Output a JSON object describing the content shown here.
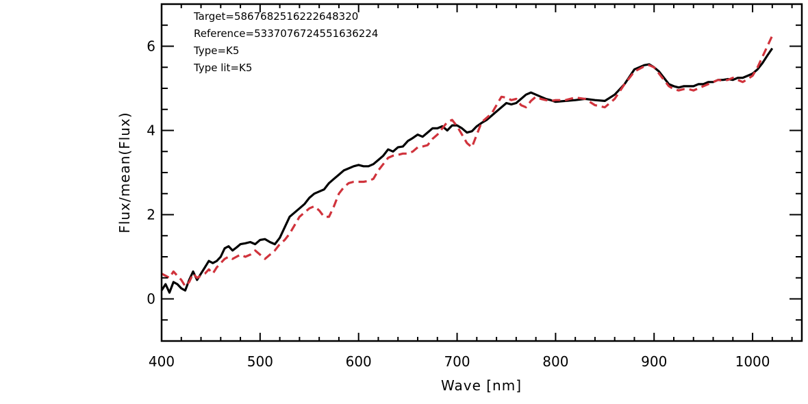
{
  "chart_data": {
    "type": "line",
    "xlabel": "Wave [nm]",
    "ylabel": "Flux/mean(Flux)",
    "xlim": [
      400,
      1050
    ],
    "ylim": [
      -1,
      7
    ],
    "x_ticks": [
      400,
      500,
      600,
      700,
      800,
      900,
      1000
    ],
    "y_ticks": [
      0,
      2,
      4,
      6
    ],
    "x_minor_step": 20,
    "y_minor_step": 0.5,
    "grid": false,
    "annotations": [
      "Target=5867682516222648320",
      "Reference=5337076724551636224",
      "Type=K5",
      "Type lit=K5"
    ],
    "series": [
      {
        "color": "#000000",
        "style": "solid",
        "x": [
          400,
          404,
          408,
          412,
          416,
          420,
          424,
          428,
          432,
          436,
          440,
          444,
          448,
          452,
          456,
          460,
          464,
          468,
          472,
          476,
          480,
          485,
          490,
          495,
          500,
          505,
          510,
          515,
          520,
          525,
          530,
          535,
          540,
          545,
          550,
          555,
          560,
          565,
          570,
          575,
          580,
          585,
          590,
          595,
          600,
          605,
          610,
          615,
          620,
          625,
          630,
          635,
          640,
          645,
          650,
          655,
          660,
          665,
          670,
          675,
          680,
          685,
          690,
          695,
          700,
          705,
          710,
          715,
          720,
          725,
          730,
          735,
          740,
          745,
          750,
          755,
          760,
          765,
          770,
          775,
          780,
          785,
          790,
          795,
          800,
          810,
          820,
          830,
          840,
          850,
          860,
          870,
          880,
          890,
          895,
          900,
          905,
          910,
          915,
          920,
          925,
          930,
          935,
          940,
          945,
          950,
          955,
          960,
          965,
          970,
          975,
          980,
          985,
          990,
          995,
          1000,
          1005,
          1010,
          1015,
          1020
        ],
        "y": [
          0.2,
          0.35,
          0.15,
          0.4,
          0.35,
          0.25,
          0.2,
          0.45,
          0.65,
          0.45,
          0.6,
          0.75,
          0.9,
          0.85,
          0.9,
          1.0,
          1.2,
          1.25,
          1.15,
          1.22,
          1.3,
          1.32,
          1.35,
          1.3,
          1.4,
          1.42,
          1.35,
          1.3,
          1.45,
          1.7,
          1.95,
          2.05,
          2.15,
          2.25,
          2.4,
          2.5,
          2.55,
          2.6,
          2.75,
          2.85,
          2.95,
          3.05,
          3.1,
          3.15,
          3.18,
          3.15,
          3.15,
          3.2,
          3.3,
          3.4,
          3.55,
          3.5,
          3.6,
          3.62,
          3.75,
          3.82,
          3.9,
          3.85,
          3.95,
          4.05,
          4.05,
          4.1,
          4.0,
          4.12,
          4.12,
          4.05,
          3.95,
          3.98,
          4.1,
          4.18,
          4.25,
          4.35,
          4.45,
          4.55,
          4.65,
          4.62,
          4.65,
          4.75,
          4.85,
          4.9,
          4.85,
          4.8,
          4.75,
          4.72,
          4.68,
          4.7,
          4.72,
          4.75,
          4.72,
          4.7,
          4.85,
          5.1,
          5.45,
          5.55,
          5.57,
          5.5,
          5.4,
          5.25,
          5.1,
          5.05,
          5.02,
          5.05,
          5.05,
          5.05,
          5.1,
          5.1,
          5.15,
          5.15,
          5.2,
          5.2,
          5.22,
          5.2,
          5.25,
          5.25,
          5.3,
          5.35,
          5.45,
          5.6,
          5.78,
          5.95
        ]
      },
      {
        "color": "#d0333c",
        "style": "dashed",
        "x": [
          400,
          404,
          408,
          412,
          416,
          420,
          424,
          428,
          432,
          436,
          440,
          444,
          448,
          452,
          456,
          460,
          464,
          468,
          472,
          476,
          480,
          485,
          490,
          495,
          500,
          505,
          510,
          515,
          520,
          525,
          530,
          535,
          540,
          545,
          550,
          555,
          560,
          565,
          570,
          575,
          580,
          585,
          590,
          595,
          600,
          605,
          610,
          615,
          620,
          625,
          630,
          635,
          640,
          645,
          650,
          655,
          660,
          665,
          670,
          675,
          680,
          685,
          690,
          695,
          700,
          705,
          710,
          715,
          720,
          725,
          730,
          735,
          740,
          745,
          750,
          755,
          760,
          765,
          770,
          775,
          780,
          785,
          790,
          795,
          800,
          810,
          820,
          830,
          840,
          850,
          860,
          870,
          880,
          890,
          895,
          900,
          905,
          910,
          915,
          920,
          925,
          930,
          935,
          940,
          945,
          950,
          955,
          960,
          965,
          970,
          975,
          980,
          985,
          990,
          995,
          1000,
          1005,
          1010,
          1015,
          1020
        ],
        "y": [
          0.6,
          0.55,
          0.5,
          0.65,
          0.55,
          0.45,
          0.3,
          0.4,
          0.6,
          0.5,
          0.55,
          0.6,
          0.7,
          0.6,
          0.75,
          0.85,
          0.95,
          1.0,
          0.95,
          1.0,
          1.05,
          1.0,
          1.05,
          1.15,
          1.05,
          0.95,
          1.05,
          1.15,
          1.3,
          1.4,
          1.55,
          1.75,
          1.95,
          2.05,
          2.15,
          2.2,
          2.1,
          1.95,
          1.95,
          2.2,
          2.5,
          2.65,
          2.75,
          2.78,
          2.78,
          2.78,
          2.8,
          2.85,
          3.05,
          3.2,
          3.35,
          3.4,
          3.42,
          3.45,
          3.45,
          3.5,
          3.6,
          3.62,
          3.65,
          3.8,
          3.9,
          4.05,
          4.2,
          4.25,
          4.1,
          3.9,
          3.7,
          3.6,
          3.9,
          4.2,
          4.3,
          4.4,
          4.6,
          4.8,
          4.78,
          4.72,
          4.75,
          4.6,
          4.55,
          4.7,
          4.8,
          4.75,
          4.72,
          4.7,
          4.72,
          4.72,
          4.78,
          4.75,
          4.6,
          4.55,
          4.75,
          5.1,
          5.4,
          5.52,
          5.55,
          5.5,
          5.35,
          5.2,
          5.05,
          4.98,
          4.95,
          4.98,
          4.98,
          4.95,
          5.0,
          5.05,
          5.1,
          5.15,
          5.2,
          5.18,
          5.2,
          5.25,
          5.2,
          5.15,
          5.22,
          5.3,
          5.5,
          5.75,
          6.0,
          6.25
        ]
      }
    ]
  }
}
